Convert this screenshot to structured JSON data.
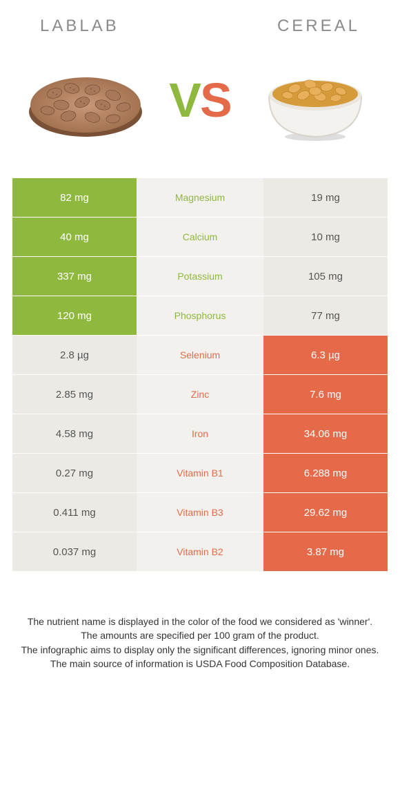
{
  "header": {
    "left_title": "LABLAB",
    "right_title": "CEREAL"
  },
  "vs": {
    "v": "V",
    "s": "S"
  },
  "colors": {
    "green": "#8fb83f",
    "orange": "#e46a4a",
    "neutral_bg": "#ebeae5",
    "mid_bg": "#f2f1ed",
    "header_text": "#8a8a8a",
    "footnote_text": "#333333"
  },
  "rows": [
    {
      "nutrient": "Magnesium",
      "left": "82 mg",
      "right": "19 mg",
      "winner": "left"
    },
    {
      "nutrient": "Calcium",
      "left": "40 mg",
      "right": "10 mg",
      "winner": "left"
    },
    {
      "nutrient": "Potassium",
      "left": "337 mg",
      "right": "105 mg",
      "winner": "left"
    },
    {
      "nutrient": "Phosphorus",
      "left": "120 mg",
      "right": "77 mg",
      "winner": "left"
    },
    {
      "nutrient": "Selenium",
      "left": "2.8 µg",
      "right": "6.3 µg",
      "winner": "right"
    },
    {
      "nutrient": "Zinc",
      "left": "2.85 mg",
      "right": "7.6 mg",
      "winner": "right"
    },
    {
      "nutrient": "Iron",
      "left": "4.58 mg",
      "right": "34.06 mg",
      "winner": "right"
    },
    {
      "nutrient": "Vitamin B1",
      "left": "0.27 mg",
      "right": "6.288 mg",
      "winner": "right"
    },
    {
      "nutrient": "Vitamin B3",
      "left": "0.411 mg",
      "right": "29.62 mg",
      "winner": "right"
    },
    {
      "nutrient": "Vitamin B2",
      "left": "0.037 mg",
      "right": "3.87 mg",
      "winner": "right"
    }
  ],
  "footnote": {
    "l1": "The nutrient name is displayed in the color of the food we considered as 'winner'.",
    "l2": "The amounts are specified per 100 gram of the product.",
    "l3": "The infographic aims to display only the significant differences, ignoring minor ones.",
    "l4": "The main source of information is USDA Food Composition Database."
  }
}
